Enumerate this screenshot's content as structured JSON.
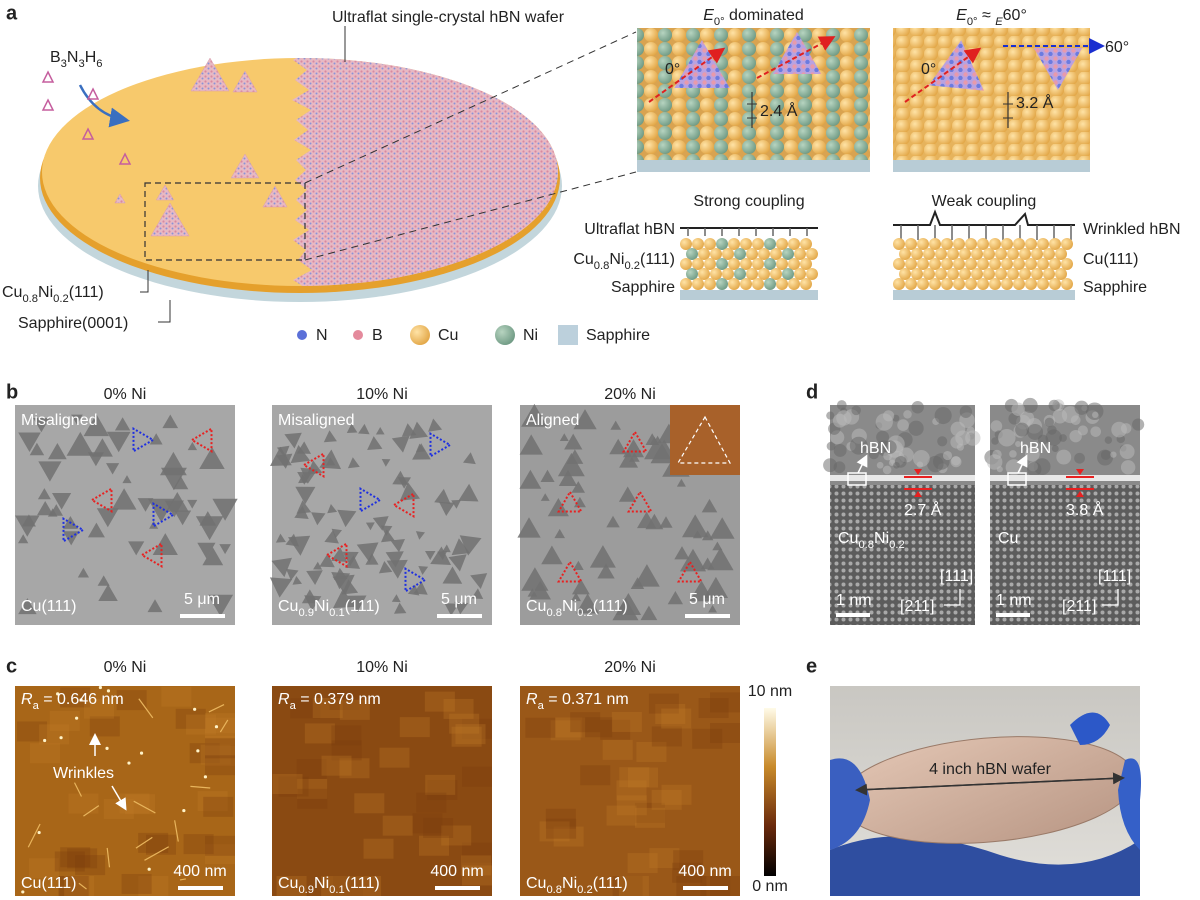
{
  "a": {
    "label": "a",
    "wafer_title": "Ultraflat single-crystal hBN wafer",
    "precursor": [
      "B",
      "3",
      "N",
      "3",
      "H",
      "6"
    ],
    "substrate": [
      "Cu",
      "0.8",
      "Ni",
      "0.2",
      "(111)"
    ],
    "sapphire": "Sapphire(0001)",
    "legend": [
      "N",
      "B",
      "Cu",
      "Ni",
      "Sapphire"
    ],
    "insets": [
      {
        "title": [
          "E",
          "0°",
          " dominated"
        ],
        "angles": [
          "0°"
        ],
        "spacing": "2.4 Å"
      },
      {
        "title": [
          "E",
          "0°",
          " ≈ ",
          "E",
          "60°"
        ],
        "angles": [
          "0°",
          "60°"
        ],
        "spacing": "3.2 Å"
      }
    ],
    "schematics": [
      {
        "title": "Strong coupling",
        "hbn": "Ultraflat hBN",
        "metal": [
          "Cu",
          "0.8",
          "Ni",
          "0.2",
          "(111)"
        ],
        "base": "Sapphire"
      },
      {
        "title": "Weak coupling",
        "hbn": "Wrinkled hBN",
        "metal": [
          "Cu(111)"
        ],
        "base": "Sapphire"
      }
    ]
  },
  "b": {
    "label": "b",
    "panels": [
      {
        "header": "0% Ni",
        "tag": "Misaligned",
        "substrate": [
          "Cu(111)"
        ],
        "scale": "5 μm"
      },
      {
        "header": "10% Ni",
        "tag": "Misaligned",
        "substrate": [
          "Cu",
          "0.9",
          "Ni",
          "0.1",
          "(111)"
        ],
        "scale": "5 μm"
      },
      {
        "header": "20% Ni",
        "tag": "Aligned",
        "substrate": [
          "Cu",
          "0.8",
          "Ni",
          "0.2",
          "(111)"
        ],
        "scale": "5 μm"
      }
    ]
  },
  "c": {
    "label": "c",
    "panels": [
      {
        "header": "0% Ni",
        "roughness": [
          "R",
          "a",
          " = 0.646 nm"
        ],
        "substrate": [
          "Cu(111)"
        ],
        "scale": "400 nm"
      },
      {
        "header": "10% Ni",
        "roughness": [
          "R",
          "a",
          " = 0.379 nm"
        ],
        "substrate": [
          "Cu",
          "0.9",
          "Ni",
          "0.1",
          "(111)"
        ],
        "scale": "400 nm"
      },
      {
        "header": "20% Ni",
        "roughness": [
          "R",
          "a",
          " = 0.371 nm"
        ],
        "substrate": [
          "Cu",
          "0.8",
          "Ni",
          "0.2",
          "(111)"
        ],
        "scale": "400 nm"
      }
    ],
    "annotation": "Wrinkles",
    "colorbar": [
      "10 nm",
      "0 nm"
    ]
  },
  "d": {
    "label": "d",
    "panels": [
      {
        "hbn": "hBN",
        "spacing": "2.7 Å",
        "substrate": [
          "Cu",
          "0.8",
          "Ni",
          "0.2"
        ],
        "scale": "1 nm",
        "dir1": "[111]",
        "dir2": "[211]"
      },
      {
        "hbn": "hBN",
        "spacing": "3.8 Å",
        "substrate": [
          "Cu"
        ],
        "scale": "1 nm",
        "dir1": "[111]",
        "dir2": "[211]"
      }
    ]
  },
  "e": {
    "label": "e",
    "caption": "4 inch hBN wafer"
  }
}
